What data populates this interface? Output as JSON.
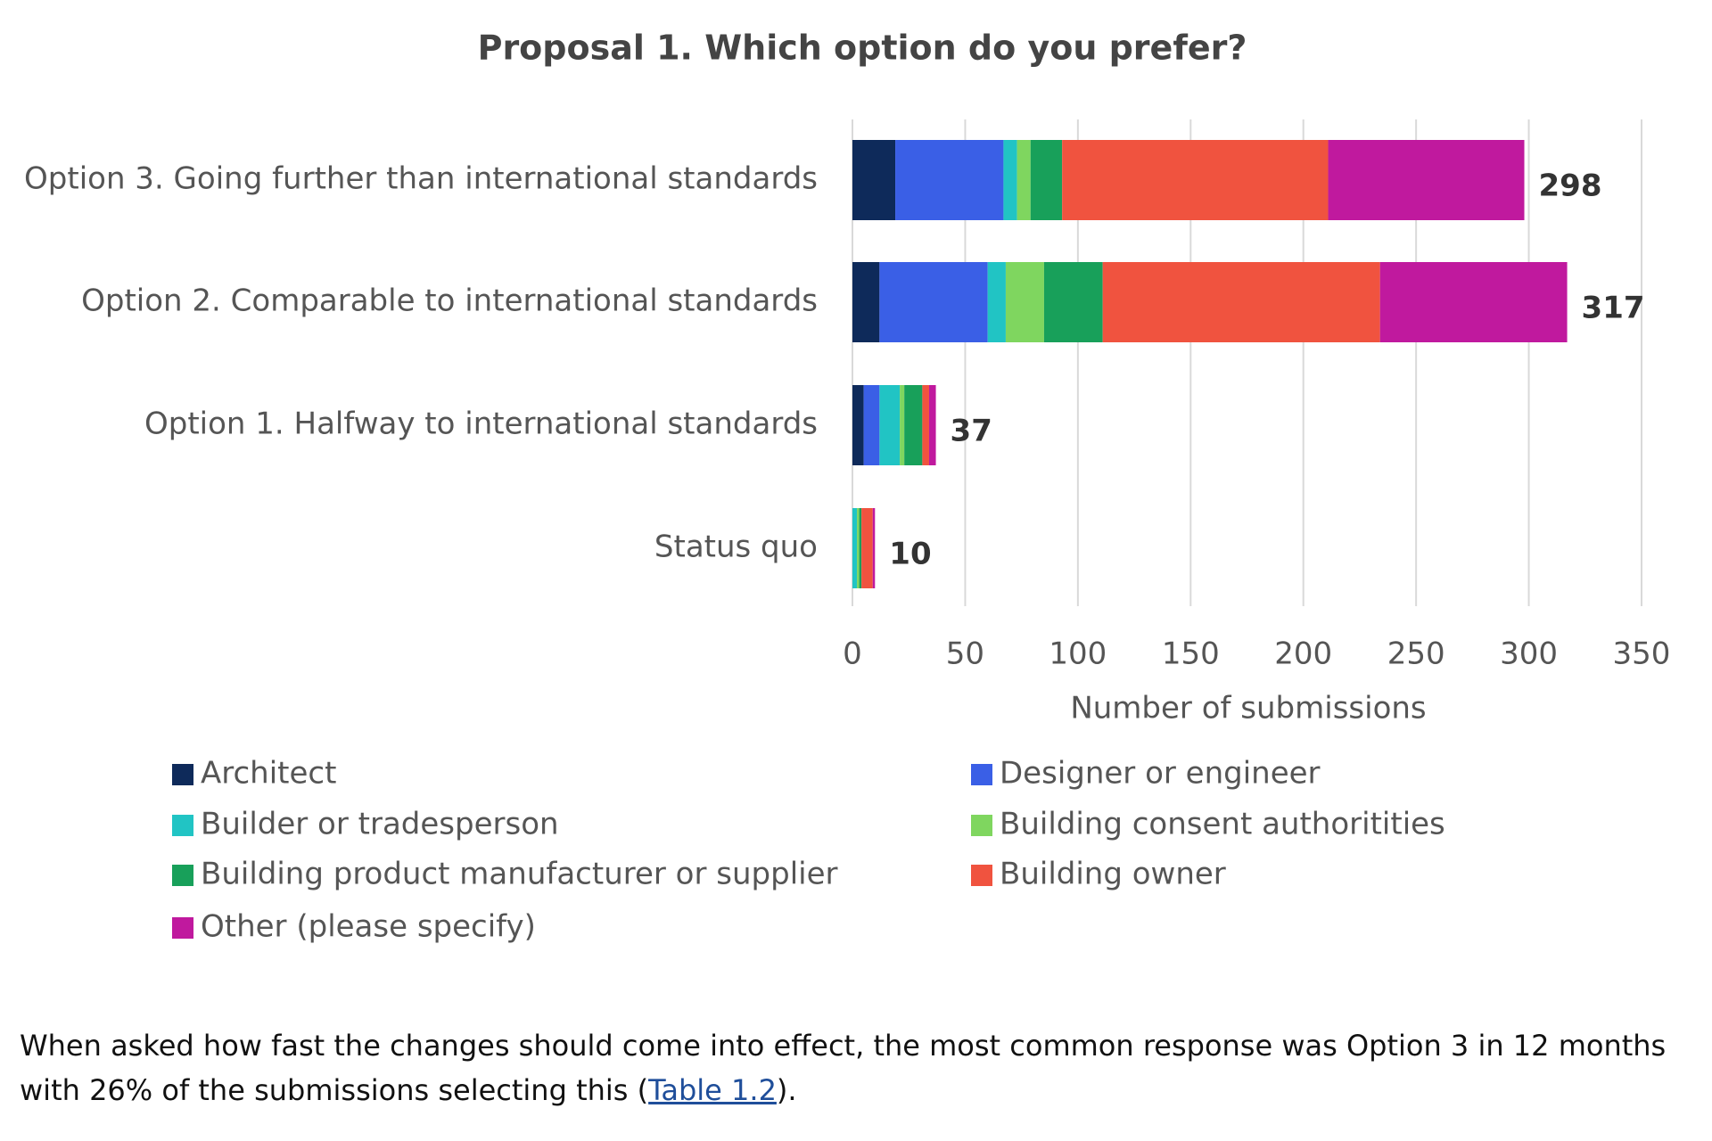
{
  "chart_data": {
    "type": "stacked-barh",
    "title": "Proposal 1. Which option do you prefer?",
    "categories": [
      "Option 3. Going further than international standards",
      "Option 2. Comparable to international standards",
      "Option 1. Halfway to international standards",
      "Status quo"
    ],
    "series": [
      {
        "name": "Architect",
        "color": "#0e2a5a",
        "values": [
          19,
          12,
          5,
          0
        ]
      },
      {
        "name": "Designer or engineer",
        "color": "#3a5fe6",
        "values": [
          48,
          48,
          7,
          0
        ]
      },
      {
        "name": "Builder or tradesperson",
        "color": "#21c4c4",
        "values": [
          6,
          8,
          9,
          2
        ]
      },
      {
        "name": "Building consent authoritities",
        "color": "#7fd65f",
        "values": [
          6,
          17,
          2,
          1
        ]
      },
      {
        "name": "Building product manufacturer or supplier",
        "color": "#18a05a",
        "values": [
          14,
          26,
          8,
          1
        ]
      },
      {
        "name": "Building owner",
        "color": "#f0533f",
        "values": [
          118,
          123,
          3,
          5
        ]
      },
      {
        "name": "Other (please specify)",
        "color": "#c0199e",
        "values": [
          87,
          83,
          3,
          1
        ]
      }
    ],
    "totals": [
      298,
      317,
      37,
      10
    ],
    "xlabel": "Number of submissions",
    "xlim": [
      0,
      350
    ],
    "xticks": [
      0,
      50,
      100,
      150,
      200,
      250,
      300,
      350
    ],
    "grid": true
  },
  "paragraph": {
    "text": "When asked how fast the changes should come into effect, the most common response was Option 3 in 12 months with 26% of the submissions selecting this (",
    "link": "Table 1.2",
    "end": ")."
  }
}
